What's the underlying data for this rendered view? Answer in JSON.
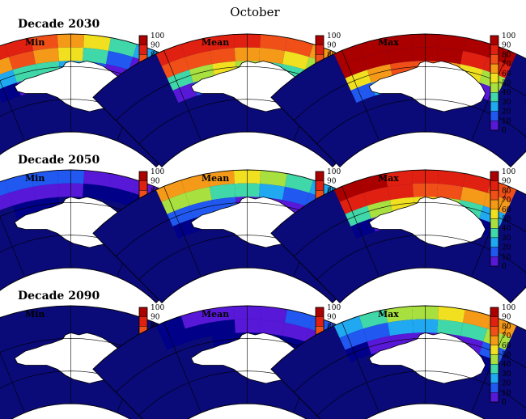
{
  "figure": {
    "title": "October"
  },
  "colorbar": {
    "ticks": [
      "100",
      "90",
      "80",
      "70",
      "60",
      "50",
      "40",
      "30",
      "20",
      "10",
      "0"
    ],
    "colors": [
      "#aa0000",
      "#e02010",
      "#f05018",
      "#f59a18",
      "#f0e020",
      "#a8e040",
      "#40d8a8",
      "#20a8f0",
      "#2058f0",
      "#5818d8",
      "#000088"
    ]
  },
  "colors": {
    "land": "#ffffff",
    "water_zero": "#0a0a78",
    "grid": "#000000"
  },
  "chart_data": {
    "type": "map-grid",
    "title": "October",
    "value_range": [
      0,
      100
    ],
    "rows": [
      {
        "decade_label": "Decade 2030",
        "panels": [
          {
            "label": "Min",
            "ice": [
              [
                90,
                88,
                80,
                70,
                60,
                45,
                30
              ],
              [
                70,
                80,
                75,
                60,
                40,
                25,
                10
              ],
              [
                30,
                45,
                40,
                30,
                20,
                10,
                5
              ],
              [
                5,
                10,
                8,
                5,
                2,
                0,
                0
              ]
            ]
          },
          {
            "label": "Mean",
            "ice": [
              [
                95,
                92,
                90,
                88,
                85,
                80,
                75
              ],
              [
                85,
                82,
                80,
                75,
                70,
                60,
                55
              ],
              [
                45,
                55,
                60,
                50,
                45,
                40,
                30
              ],
              [
                10,
                20,
                25,
                20,
                15,
                10,
                5
              ]
            ]
          },
          {
            "label": "Max",
            "ice": [
              [
                100,
                100,
                100,
                100,
                100,
                100,
                98
              ],
              [
                100,
                100,
                100,
                100,
                98,
                95,
                90
              ],
              [
                60,
                75,
                85,
                80,
                70,
                60,
                50
              ],
              [
                20,
                30,
                40,
                35,
                25,
                15,
                10
              ]
            ]
          }
        ]
      },
      {
        "decade_label": "Decade 2050",
        "panels": [
          {
            "label": "Min",
            "ice": [
              [
                20,
                25,
                22,
                18,
                15,
                12,
                8
              ],
              [
                10,
                12,
                10,
                8,
                5,
                3,
                2
              ],
              [
                0,
                2,
                1,
                0,
                0,
                0,
                0
              ],
              [
                0,
                0,
                0,
                0,
                0,
                0,
                0
              ]
            ]
          },
          {
            "label": "Mean",
            "ice": [
              [
                75,
                72,
                68,
                62,
                55,
                45,
                35
              ],
              [
                55,
                50,
                45,
                40,
                32,
                25,
                18
              ],
              [
                25,
                20,
                18,
                15,
                10,
                6,
                3
              ],
              [
                5,
                3,
                2,
                1,
                0,
                0,
                0
              ]
            ]
          },
          {
            "label": "Max",
            "ice": [
              [
                100,
                98,
                95,
                92,
                90,
                88,
                85
              ],
              [
                95,
                90,
                88,
                85,
                80,
                75,
                70
              ],
              [
                40,
                55,
                65,
                60,
                55,
                45,
                35
              ],
              [
                5,
                12,
                18,
                15,
                10,
                5,
                2
              ]
            ]
          }
        ]
      },
      {
        "decade_label": "Decade 2090",
        "panels": [
          {
            "label": "Min",
            "ice": [
              [
                0,
                0,
                0,
                0,
                0,
                0,
                0
              ],
              [
                0,
                0,
                0,
                0,
                0,
                0,
                0
              ],
              [
                0,
                0,
                0,
                0,
                0,
                0,
                0
              ],
              [
                0,
                0,
                0,
                0,
                0,
                0,
                0
              ]
            ]
          },
          {
            "label": "Mean",
            "ice": [
              [
                5,
                8,
                10,
                12,
                15,
                20,
                25
              ],
              [
                2,
                3,
                5,
                6,
                8,
                10,
                12
              ],
              [
                0,
                0,
                1,
                1,
                2,
                2,
                3
              ],
              [
                0,
                0,
                0,
                0,
                0,
                0,
                0
              ]
            ]
          },
          {
            "label": "Max",
            "ice": [
              [
                35,
                40,
                48,
                55,
                62,
                70,
                75
              ],
              [
                20,
                25,
                30,
                35,
                40,
                45,
                48
              ],
              [
                5,
                8,
                10,
                12,
                14,
                15,
                16
              ],
              [
                0,
                1,
                2,
                2,
                3,
                3,
                3
              ]
            ]
          }
        ]
      }
    ]
  }
}
